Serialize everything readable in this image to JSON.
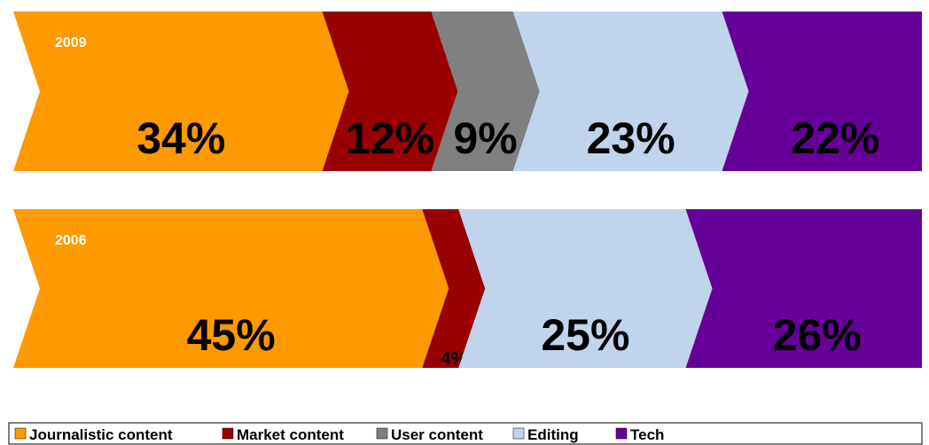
{
  "chart_data": {
    "type": "chevron-stacked-bar",
    "categories": [
      "2009",
      "2006"
    ],
    "series": [
      {
        "name": "Journalistic content",
        "color": "#FF9900",
        "values": [
          34,
          45
        ],
        "value_labels": [
          "34%",
          "45%"
        ]
      },
      {
        "name": "Market content",
        "color": "#990000",
        "values": [
          12,
          4
        ],
        "value_labels": [
          "12%",
          "4%"
        ]
      },
      {
        "name": "User content",
        "color": "#808080",
        "values": [
          9,
          null
        ],
        "value_labels": [
          "9%",
          null
        ]
      },
      {
        "name": "Editing",
        "color": "#C0D4EC",
        "values": [
          23,
          25
        ],
        "value_labels": [
          "23%",
          "25%"
        ]
      },
      {
        "name": "Tech",
        "color": "#660099",
        "values": [
          22,
          26
        ],
        "value_labels": [
          "22%",
          "26%"
        ]
      }
    ],
    "xlim": [
      0,
      100
    ]
  }
}
